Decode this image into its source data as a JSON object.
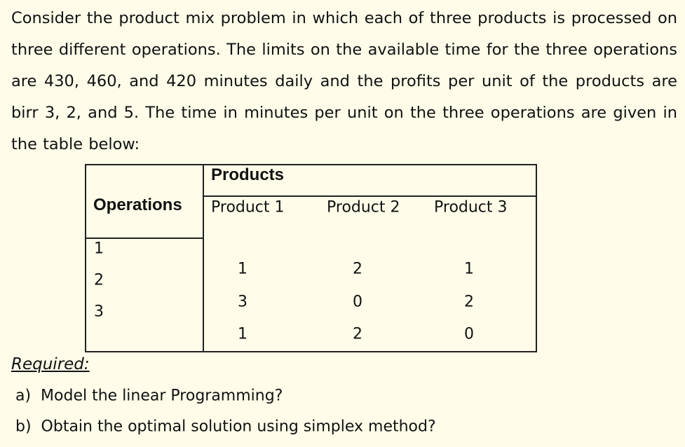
{
  "intro": "Consider the product mix problem in which each of three products is processed on three different operations. The limits on the available time for the three operations are 430, 460, and 420 minutes daily and the profits per unit of the products are birr 3, 2, and 5. The time in minutes per unit on the three operations are given in the table below:",
  "table": {
    "products_header": "Products",
    "operations_header": "Operations",
    "columns": [
      "Product 1",
      "Product 2",
      "Product 3"
    ],
    "operations": [
      "1",
      "2",
      "3"
    ],
    "rows": [
      [
        "1",
        "2",
        "1"
      ],
      [
        "3",
        "0",
        "2"
      ],
      [
        "1",
        "2",
        "0"
      ]
    ]
  },
  "required": {
    "heading": "Required:",
    "items": [
      "a)  Model the linear Programming?",
      "b)  Obtain the optimal solution using simplex method?"
    ]
  }
}
